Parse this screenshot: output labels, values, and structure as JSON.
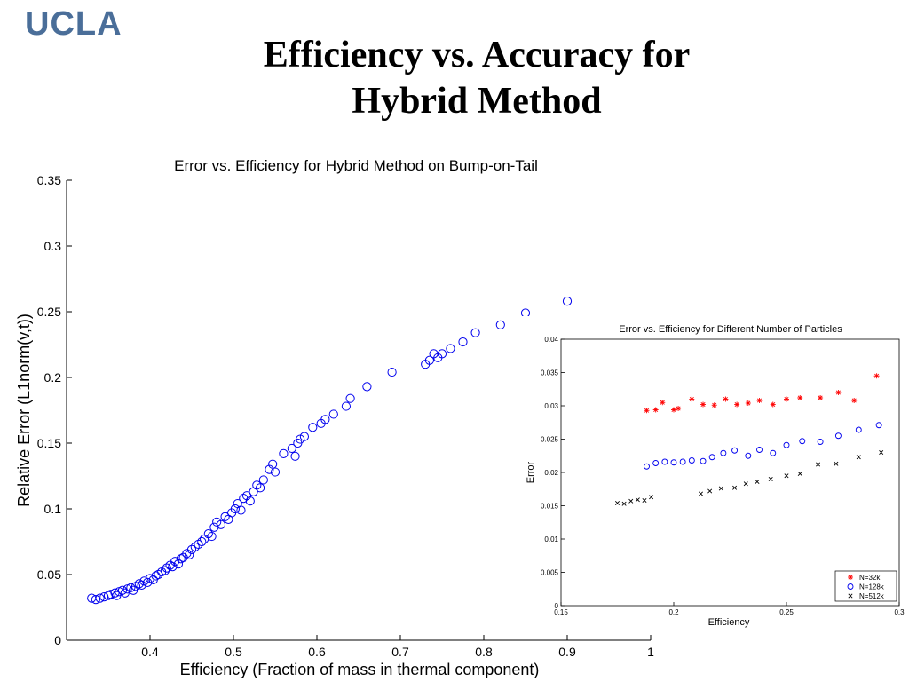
{
  "slide": {
    "logo_text": "UCLA",
    "title_line1": "Efficiency vs. Accuracy for",
    "title_line2": "Hybrid Method"
  },
  "chart_data": [
    {
      "type": "scatter",
      "title": "Error vs. Efficiency for Hybrid Method on Bump-on-Tail",
      "xlabel": "Efficiency (Fraction of mass in thermal component)",
      "ylabel": "Relative Error (L1norm(v,t))",
      "xlim": [
        0.3,
        1.0
      ],
      "ylim": [
        0,
        0.35
      ],
      "xticks": [
        "0.4",
        "0.5",
        "0.6",
        "0.7",
        "0.8",
        "0.9",
        "1"
      ],
      "xtick_values": [
        0.4,
        0.5,
        0.6,
        0.7,
        0.8,
        0.9,
        1.0
      ],
      "yticks": [
        "0",
        "0.05",
        "0.1",
        "0.15",
        "0.2",
        "0.25",
        "0.3",
        "0.35"
      ],
      "ytick_values": [
        0,
        0.05,
        0.1,
        0.15,
        0.2,
        0.25,
        0.3,
        0.35
      ],
      "marker": "circle",
      "color": "#0000ee",
      "points": [
        [
          0.33,
          0.032
        ],
        [
          0.335,
          0.031
        ],
        [
          0.34,
          0.032
        ],
        [
          0.345,
          0.033
        ],
        [
          0.35,
          0.034
        ],
        [
          0.353,
          0.035
        ],
        [
          0.358,
          0.036
        ],
        [
          0.36,
          0.034
        ],
        [
          0.363,
          0.037
        ],
        [
          0.367,
          0.038
        ],
        [
          0.37,
          0.036
        ],
        [
          0.373,
          0.039
        ],
        [
          0.377,
          0.04
        ],
        [
          0.38,
          0.038
        ],
        [
          0.383,
          0.041
        ],
        [
          0.387,
          0.043
        ],
        [
          0.39,
          0.042
        ],
        [
          0.393,
          0.045
        ],
        [
          0.397,
          0.044
        ],
        [
          0.4,
          0.047
        ],
        [
          0.404,
          0.046
        ],
        [
          0.407,
          0.049
        ],
        [
          0.41,
          0.05
        ],
        [
          0.414,
          0.052
        ],
        [
          0.418,
          0.053
        ],
        [
          0.42,
          0.055
        ],
        [
          0.424,
          0.057
        ],
        [
          0.427,
          0.056
        ],
        [
          0.43,
          0.06
        ],
        [
          0.434,
          0.058
        ],
        [
          0.437,
          0.062
        ],
        [
          0.44,
          0.063
        ],
        [
          0.444,
          0.066
        ],
        [
          0.447,
          0.065
        ],
        [
          0.45,
          0.069
        ],
        [
          0.454,
          0.071
        ],
        [
          0.458,
          0.073
        ],
        [
          0.462,
          0.075
        ],
        [
          0.465,
          0.077
        ],
        [
          0.47,
          0.081
        ],
        [
          0.474,
          0.079
        ],
        [
          0.477,
          0.086
        ],
        [
          0.48,
          0.09
        ],
        [
          0.485,
          0.088
        ],
        [
          0.49,
          0.094
        ],
        [
          0.494,
          0.092
        ],
        [
          0.498,
          0.097
        ],
        [
          0.502,
          0.1
        ],
        [
          0.505,
          0.104
        ],
        [
          0.509,
          0.099
        ],
        [
          0.512,
          0.108
        ],
        [
          0.516,
          0.11
        ],
        [
          0.52,
          0.106
        ],
        [
          0.524,
          0.113
        ],
        [
          0.528,
          0.118
        ],
        [
          0.532,
          0.116
        ],
        [
          0.536,
          0.122
        ],
        [
          0.543,
          0.13
        ],
        [
          0.547,
          0.134
        ],
        [
          0.55,
          0.128
        ],
        [
          0.56,
          0.142
        ],
        [
          0.57,
          0.146
        ],
        [
          0.574,
          0.14
        ],
        [
          0.577,
          0.15
        ],
        [
          0.58,
          0.153
        ],
        [
          0.585,
          0.155
        ],
        [
          0.595,
          0.162
        ],
        [
          0.605,
          0.165
        ],
        [
          0.61,
          0.168
        ],
        [
          0.62,
          0.172
        ],
        [
          0.635,
          0.178
        ],
        [
          0.64,
          0.184
        ],
        [
          0.66,
          0.193
        ],
        [
          0.69,
          0.204
        ],
        [
          0.73,
          0.21
        ],
        [
          0.735,
          0.213
        ],
        [
          0.74,
          0.218
        ],
        [
          0.745,
          0.215
        ],
        [
          0.75,
          0.218
        ],
        [
          0.76,
          0.222
        ],
        [
          0.775,
          0.227
        ],
        [
          0.79,
          0.234
        ],
        [
          0.82,
          0.24
        ],
        [
          0.85,
          0.249
        ],
        [
          0.9,
          0.258
        ]
      ]
    },
    {
      "type": "scatter",
      "title": "Error vs. Efficiency for Different Number of Particles",
      "xlabel": "Efficiency",
      "ylabel": "Error",
      "xlim": [
        0.15,
        0.3
      ],
      "ylim": [
        0,
        0.04
      ],
      "xticks": [
        "0.15",
        "0.2",
        "0.25",
        "0.3"
      ],
      "xtick_values": [
        0.15,
        0.2,
        0.25,
        0.3
      ],
      "yticks": [
        "0",
        "0.005",
        "0.01",
        "0.015",
        "0.02",
        "0.025",
        "0.03",
        "0.035",
        "0.04"
      ],
      "ytick_values": [
        0,
        0.005,
        0.01,
        0.015,
        0.02,
        0.025,
        0.03,
        0.035,
        0.04
      ],
      "legend": "bottom-right",
      "series": [
        {
          "name": "N=32k",
          "marker": "star",
          "color": "#ff0000",
          "points": [
            [
              0.188,
              0.0293
            ],
            [
              0.192,
              0.0294
            ],
            [
              0.195,
              0.0305
            ],
            [
              0.2,
              0.0294
            ],
            [
              0.202,
              0.0296
            ],
            [
              0.208,
              0.031
            ],
            [
              0.213,
              0.0302
            ],
            [
              0.218,
              0.0301
            ],
            [
              0.223,
              0.031
            ],
            [
              0.228,
              0.0302
            ],
            [
              0.233,
              0.0304
            ],
            [
              0.238,
              0.0308
            ],
            [
              0.244,
              0.0302
            ],
            [
              0.25,
              0.031
            ],
            [
              0.256,
              0.0312
            ],
            [
              0.265,
              0.0312
            ],
            [
              0.273,
              0.032
            ],
            [
              0.28,
              0.0308
            ],
            [
              0.29,
              0.0345
            ]
          ]
        },
        {
          "name": "N=128k",
          "marker": "circle",
          "color": "#0000ee",
          "points": [
            [
              0.188,
              0.0209
            ],
            [
              0.192,
              0.0214
            ],
            [
              0.196,
              0.0216
            ],
            [
              0.2,
              0.0215
            ],
            [
              0.204,
              0.0216
            ],
            [
              0.208,
              0.0218
            ],
            [
              0.213,
              0.0217
            ],
            [
              0.217,
              0.0223
            ],
            [
              0.222,
              0.0229
            ],
            [
              0.227,
              0.0233
            ],
            [
              0.233,
              0.0225
            ],
            [
              0.238,
              0.0234
            ],
            [
              0.244,
              0.0229
            ],
            [
              0.25,
              0.0241
            ],
            [
              0.257,
              0.0247
            ],
            [
              0.265,
              0.0246
            ],
            [
              0.273,
              0.0255
            ],
            [
              0.282,
              0.0264
            ],
            [
              0.291,
              0.0271
            ]
          ]
        },
        {
          "name": "N=512k",
          "marker": "x",
          "color": "#000000",
          "points": [
            [
              0.175,
              0.0154
            ],
            [
              0.178,
              0.0153
            ],
            [
              0.181,
              0.0157
            ],
            [
              0.184,
              0.0159
            ],
            [
              0.187,
              0.0158
            ],
            [
              0.19,
              0.0163
            ],
            [
              0.212,
              0.0168
            ],
            [
              0.216,
              0.0172
            ],
            [
              0.221,
              0.0176
            ],
            [
              0.227,
              0.0177
            ],
            [
              0.232,
              0.0183
            ],
            [
              0.237,
              0.0186
            ],
            [
              0.243,
              0.019
            ],
            [
              0.25,
              0.0195
            ],
            [
              0.256,
              0.0198
            ],
            [
              0.264,
              0.0212
            ],
            [
              0.272,
              0.0213
            ],
            [
              0.282,
              0.0223
            ],
            [
              0.292,
              0.023
            ]
          ]
        }
      ]
    }
  ]
}
